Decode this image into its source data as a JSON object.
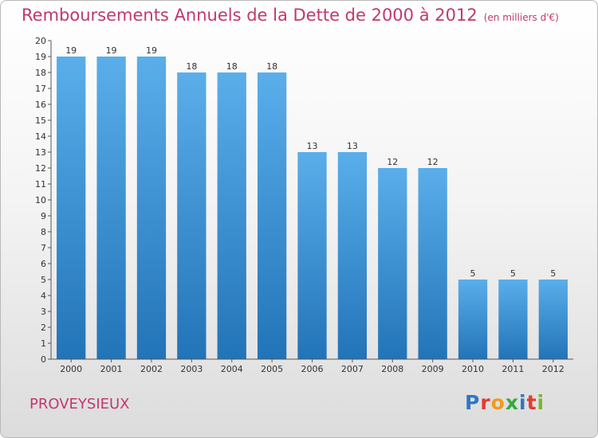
{
  "title": "Remboursements Annuels de la Dette de 2000 à 2012",
  "unit_note": "(en milliers d'€)",
  "commune": "PROVEYSIEUX",
  "logo": {
    "text": "Proxiti",
    "letter_colors": [
      "#2f77c5",
      "#e23b2e",
      "#f39a1c",
      "#36a93f",
      "#2f77c5",
      "#e23b2e",
      "#7ab62d"
    ]
  },
  "colors": {
    "bar_top": "#5aaeea",
    "bar_bottom": "#2274b8",
    "axis": "#555555",
    "title": "#c0386e"
  },
  "chart_data": {
    "type": "bar",
    "categories": [
      "2000",
      "2001",
      "2002",
      "2003",
      "2004",
      "2005",
      "2006",
      "2007",
      "2008",
      "2009",
      "2010",
      "2011",
      "2012"
    ],
    "values": [
      19,
      19,
      19,
      18,
      18,
      18,
      13,
      13,
      12,
      12,
      5,
      5,
      5
    ],
    "ylim": [
      0,
      20
    ],
    "yticks": [
      0,
      1,
      2,
      3,
      4,
      5,
      6,
      7,
      8,
      9,
      10,
      11,
      12,
      13,
      14,
      15,
      16,
      17,
      18,
      19,
      20
    ],
    "grid": false,
    "legend": "none"
  }
}
